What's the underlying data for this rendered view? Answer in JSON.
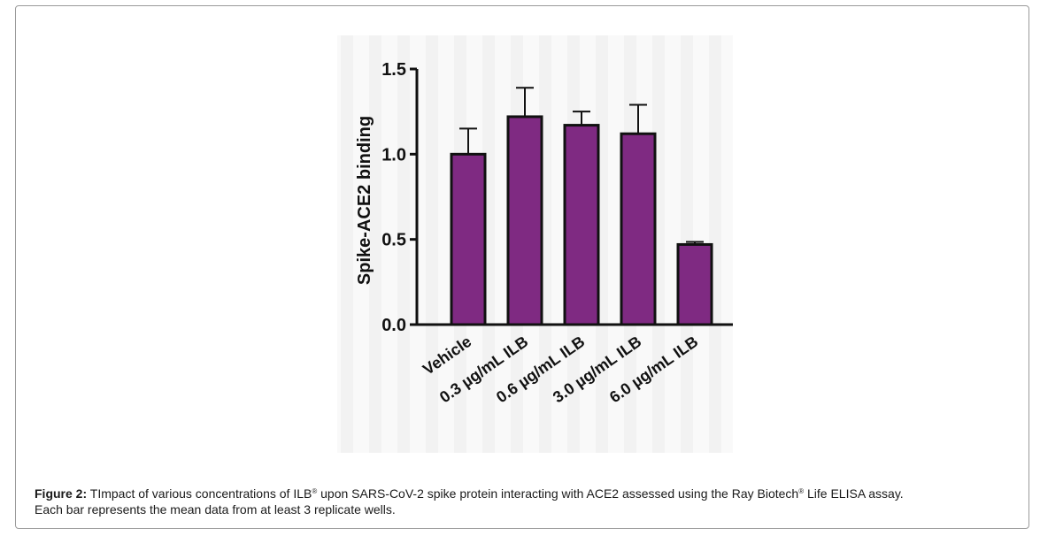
{
  "chart_data": {
    "type": "bar",
    "categories": [
      "Vehicle",
      "0.3 µg/mL ILB",
      "0.6 µg/mL ILB",
      "3.0 µg/mL ILB",
      "6.0 µg/mL ILB"
    ],
    "series": [
      {
        "values": [
          1.0,
          1.22,
          1.17,
          1.12,
          0.47
        ],
        "error": [
          0.15,
          0.17,
          0.08,
          0.17,
          0.015
        ]
      }
    ],
    "title": "",
    "xlabel": "",
    "ylabel": "Spike-ACE2 binding",
    "ylim": [
      0,
      1.5
    ],
    "yticks": [
      0.0,
      0.5,
      1.0,
      1.5
    ],
    "ytick_labels": [
      "0.0",
      "0.5",
      "1.0",
      "1.5"
    ],
    "bar_color": "#7f2a82",
    "grid": false
  },
  "caption": {
    "label": "Figure 2:",
    "part1": " TImpact of various concentrations of ILB",
    "sup1": "®",
    "part2": "  upon SARS-CoV-2 spike protein interacting with ACE2 assessed using the Ray Biotech",
    "sup2": "®",
    "part3": " Life ELISA assay.",
    "line2": "Each bar represents the mean data from at least 3 replicate wells."
  }
}
